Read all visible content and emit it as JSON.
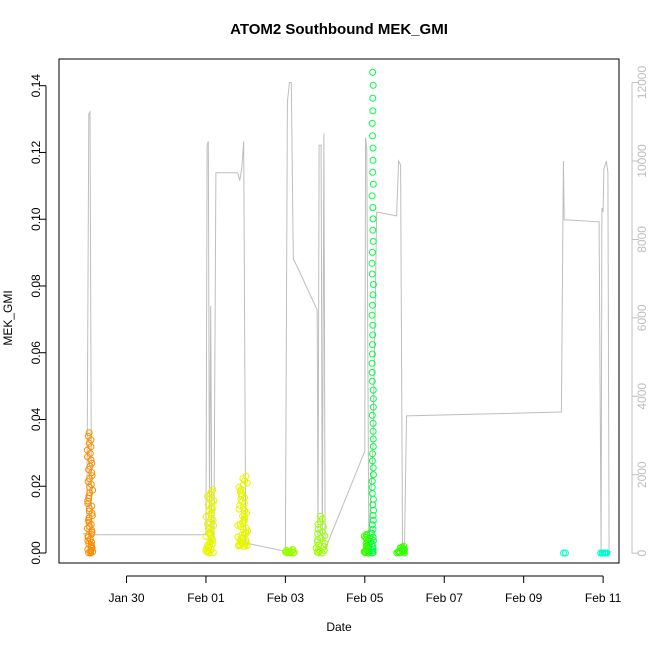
{
  "chart_data": {
    "type": "scatter",
    "title": "ATOM2 Southbound MEK_GMI",
    "xlabel": "Date",
    "ylabel": "MEK_GMI",
    "x_ticks": [
      {
        "label": "Jan 30",
        "day": 30
      },
      {
        "label": "Feb 01",
        "day": 32
      },
      {
        "label": "Feb 03",
        "day": 34
      },
      {
        "label": "Feb 05",
        "day": 36
      },
      {
        "label": "Feb 07",
        "day": 38
      },
      {
        "label": "Feb 09",
        "day": 40
      },
      {
        "label": "Feb 11",
        "day": 42
      }
    ],
    "xlim": [
      28.3,
      42.4
    ],
    "ylim": [
      -0.003,
      0.148
    ],
    "y_ticks": [
      "0.00",
      "0.02",
      "0.04",
      "0.06",
      "0.08",
      "0.10",
      "0.12",
      "0.14"
    ],
    "y_tick_values": [
      0,
      0.02,
      0.04,
      0.06,
      0.08,
      0.1,
      0.12,
      0.14
    ],
    "right_axis": {
      "color": "#bebebe",
      "ticks": [
        "0",
        "2000",
        "4000",
        "6000",
        "8000",
        "10000",
        "12000"
      ],
      "tick_values": [
        0,
        2000,
        4000,
        6000,
        8000,
        10000,
        12000
      ],
      "ylim": [
        -250,
        12600
      ]
    },
    "grid": false,
    "legend": "none",
    "series": [
      {
        "color": "#ff8c00",
        "clusters": [
          {
            "x0": 29.0,
            "x1": 29.15,
            "ymin": 0.0,
            "ymax": 0.036,
            "n": 55
          }
        ]
      },
      {
        "color": "#e6f500",
        "clusters": [
          {
            "x0": 32.0,
            "x1": 32.2,
            "ymin": 0.0,
            "ymax": 0.019,
            "n": 45
          },
          {
            "x0": 32.8,
            "x1": 33.05,
            "ymin": 0.002,
            "ymax": 0.023,
            "n": 50
          }
        ]
      },
      {
        "color": "#99ff00",
        "clusters": [
          {
            "x0": 34.0,
            "x1": 34.25,
            "ymin": 0.0,
            "ymax": 0.001,
            "n": 16
          },
          {
            "x0": 34.75,
            "x1": 35.0,
            "ymin": 0.0,
            "ymax": 0.011,
            "n": 22
          }
        ]
      },
      {
        "color": "#33ff00",
        "clusters": [
          {
            "x0": 35.98,
            "x1": 36.15,
            "ymin": 0.0,
            "ymax": 0.006,
            "n": 28
          },
          {
            "x0": 36.8,
            "x1": 37.0,
            "ymin": 0.0,
            "ymax": 0.002,
            "n": 14
          }
        ]
      },
      {
        "color": "#00ff44",
        "clusters": [
          {
            "x0": 36.18,
            "x1": 36.22,
            "ymin": 0.0,
            "ymax": 0.144,
            "n": 60
          }
        ]
      },
      {
        "color": "#00ffcc",
        "clusters": [
          {
            "x0": 41.0,
            "x1": 41.05,
            "ymin": 0.0,
            "ymax": 0.0,
            "n": 2
          },
          {
            "x0": 41.9,
            "x1": 42.1,
            "ymin": 0.0,
            "ymax": 0.0,
            "n": 10
          }
        ]
      }
    ],
    "secondary_trace": {
      "color": "#bebebe",
      "points": [
        [
          28.9,
          500
        ],
        [
          29.0,
          500
        ],
        [
          29.05,
          11200
        ],
        [
          29.08,
          11250
        ],
        [
          29.12,
          400
        ],
        [
          29.15,
          470
        ],
        [
          32.0,
          470
        ],
        [
          32.03,
          10400
        ],
        [
          32.06,
          10500
        ],
        [
          32.09,
          1000
        ],
        [
          32.12,
          6300
        ],
        [
          32.15,
          300
        ],
        [
          32.2,
          300
        ],
        [
          32.25,
          9700
        ],
        [
          32.8,
          9700
        ],
        [
          32.85,
          9500
        ],
        [
          32.9,
          9800
        ],
        [
          32.95,
          10500
        ],
        [
          33.0,
          300
        ],
        [
          33.05,
          250
        ],
        [
          34.0,
          50
        ],
        [
          34.05,
          11500
        ],
        [
          34.1,
          12000
        ],
        [
          34.15,
          12000
        ],
        [
          34.2,
          7500
        ],
        [
          34.3,
          7300
        ],
        [
          34.8,
          6200
        ],
        [
          34.82,
          300
        ],
        [
          34.85,
          10400
        ],
        [
          34.9,
          10400
        ],
        [
          34.93,
          200
        ],
        [
          34.97,
          10700
        ],
        [
          35.0,
          100
        ],
        [
          36.0,
          2600
        ],
        [
          36.02,
          10600
        ],
        [
          36.05,
          10300
        ],
        [
          36.1,
          300
        ],
        [
          36.2,
          2600
        ],
        [
          36.3,
          8700
        ],
        [
          36.8,
          8600
        ],
        [
          36.85,
          10000
        ],
        [
          36.9,
          9900
        ],
        [
          36.95,
          100
        ],
        [
          37.0,
          100
        ],
        [
          37.05,
          3500
        ],
        [
          40.95,
          3600
        ],
        [
          41.0,
          10000
        ],
        [
          41.02,
          8500
        ],
        [
          41.9,
          8450
        ],
        [
          41.95,
          0
        ],
        [
          41.97,
          8800
        ],
        [
          42.0,
          8700
        ],
        [
          42.02,
          9800
        ],
        [
          42.08,
          10000
        ],
        [
          42.12,
          9700
        ],
        [
          42.15,
          0
        ],
        [
          42.2,
          50
        ]
      ]
    }
  }
}
